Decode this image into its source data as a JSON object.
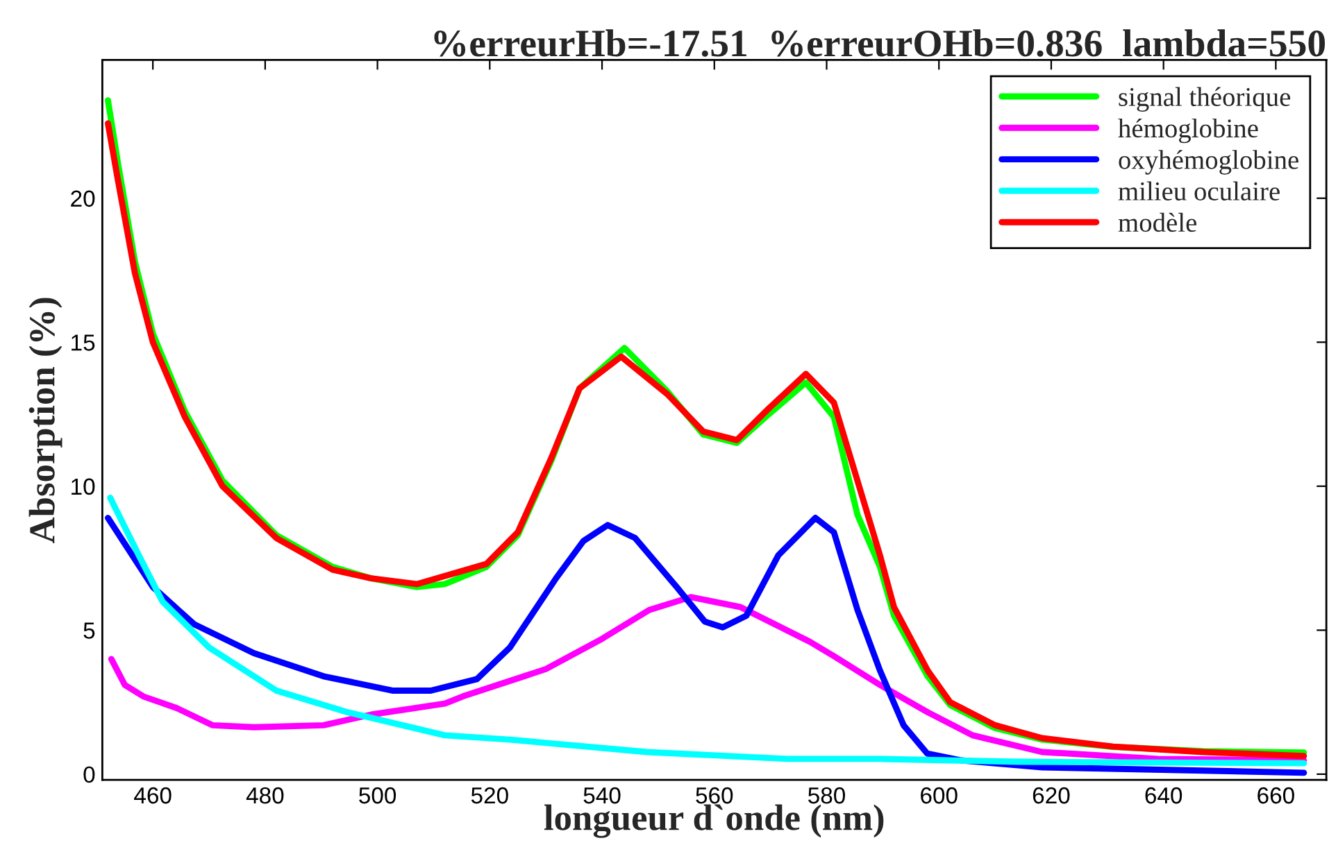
{
  "chart_data": {
    "type": "line",
    "title": "%erreurHb=-17.51  %erreurOHb=0.836  lambda=550",
    "xlabel": "longueur d`onde (nm)",
    "ylabel": "Absorption (%)",
    "xlim": [
      451,
      669
    ],
    "xticks": [
      460,
      480,
      500,
      520,
      540,
      560,
      580,
      600,
      620,
      640,
      660
    ],
    "ylim": [
      -0.2,
      24.8
    ],
    "yticks": [
      0,
      5,
      10,
      15,
      20
    ],
    "grid": false,
    "legend": "top right",
    "marker": "none",
    "line_style": "solid",
    "series": [
      {
        "name": "signal théorique",
        "color": "#00ff00",
        "x": [
          452,
          453.8,
          456.8,
          460,
          465.7,
          472.4,
          482,
          492,
          498.9,
          507,
          512,
          519.4,
          525,
          531,
          536,
          544,
          551.6,
          558,
          564,
          569.7,
          576.3,
          581.3,
          585.5,
          589.5,
          592,
          598,
          602,
          610,
          618.4,
          631,
          647,
          665
        ],
        "values": [
          23.4,
          21.2,
          17.8,
          15.3,
          12.6,
          10.2,
          8.3,
          7.2,
          6.8,
          6.5,
          6.6,
          7.2,
          8.3,
          10.9,
          13.4,
          14.8,
          13.3,
          11.8,
          11.5,
          12.5,
          13.6,
          12.4,
          9.0,
          7.2,
          5.5,
          3.4,
          2.4,
          1.6,
          1.2,
          0.95,
          0.8,
          0.75
        ]
      },
      {
        "name": "hémoglobine",
        "color": "#ff00ff",
        "x": [
          452.6,
          455,
          458.3,
          464.2,
          470.6,
          478,
          490.4,
          498.9,
          512,
          515.2,
          530,
          540,
          548.4,
          555.8,
          564.7,
          577,
          581.3,
          589.5,
          598,
          606,
          618.4,
          639,
          665
        ],
        "values": [
          4.0,
          3.1,
          2.7,
          2.3,
          1.7,
          1.63,
          1.7,
          2.07,
          2.45,
          2.7,
          3.65,
          4.7,
          5.7,
          6.15,
          5.8,
          4.6,
          4.1,
          3.1,
          2.15,
          1.35,
          0.77,
          0.53,
          0.48
        ]
      },
      {
        "name": "oxyhémoglobine",
        "color": "#0000ff",
        "x": [
          452,
          460,
          467.4,
          478,
          490.4,
          502.8,
          509.5,
          517.7,
          523.6,
          531.8,
          536.7,
          541,
          545.9,
          553.3,
          558.3,
          561.5,
          565.7,
          571.4,
          578,
          581.3,
          585.5,
          589.5,
          593.7,
          597.9,
          604,
          618.4,
          665
        ],
        "values": [
          8.9,
          6.5,
          5.2,
          4.2,
          3.4,
          2.9,
          2.9,
          3.3,
          4.4,
          6.8,
          8.1,
          8.65,
          8.2,
          6.5,
          5.3,
          5.1,
          5.5,
          7.6,
          8.9,
          8.4,
          5.7,
          3.6,
          1.7,
          0.72,
          0.48,
          0.24,
          0.05
        ]
      },
      {
        "name": "milieu oculaire",
        "color": "#00ffff",
        "x": [
          452.4,
          457.5,
          461.7,
          470,
          482,
          494.7,
          512,
          523.6,
          548,
          573,
          589.5,
          614,
          665
        ],
        "values": [
          9.6,
          7.6,
          6.0,
          4.4,
          2.9,
          2.15,
          1.35,
          1.2,
          0.77,
          0.53,
          0.53,
          0.43,
          0.38
        ]
      },
      {
        "name": "modèle",
        "color": "#ff0000",
        "x": [
          452,
          453.8,
          456.8,
          460,
          465.7,
          472.4,
          482,
          492,
          498.9,
          507,
          519.4,
          525,
          531,
          536,
          543.4,
          551.6,
          558,
          564,
          569.7,
          576.3,
          581.3,
          589.5,
          592,
          598,
          602,
          610,
          618.4,
          631,
          647,
          665
        ],
        "values": [
          22.6,
          20.6,
          17.4,
          15.0,
          12.4,
          10.0,
          8.2,
          7.1,
          6.8,
          6.6,
          7.3,
          8.4,
          11.0,
          13.4,
          14.5,
          13.2,
          11.9,
          11.6,
          12.7,
          13.9,
          12.9,
          7.6,
          5.8,
          3.6,
          2.5,
          1.7,
          1.25,
          0.96,
          0.77,
          0.63
        ]
      }
    ]
  }
}
